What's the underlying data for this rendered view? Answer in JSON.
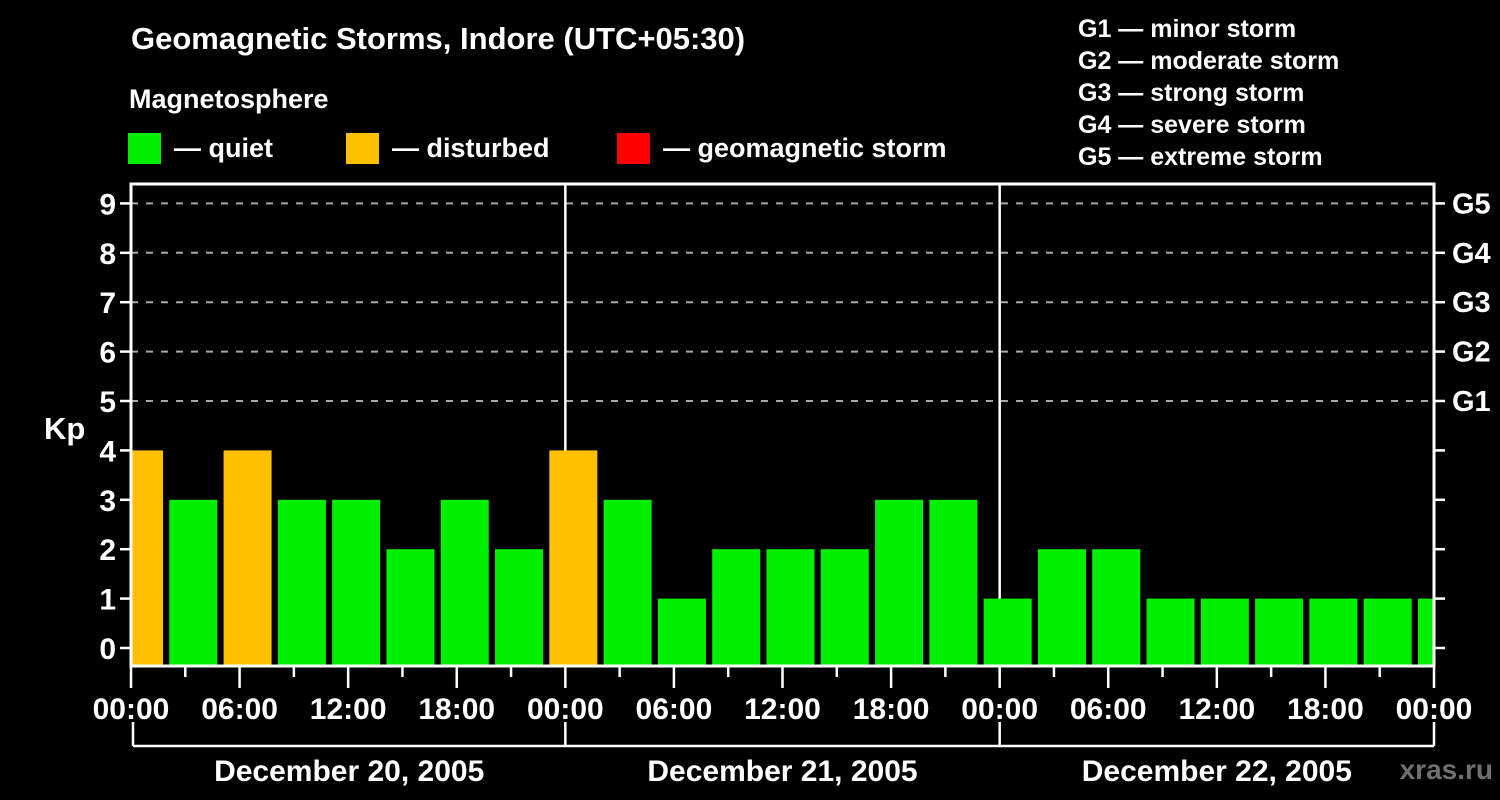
{
  "header": {
    "title": "Geomagnetic Storms, Indore (UTC+05:30)",
    "subtitle": "Magnetosphere"
  },
  "legend": {
    "items": [
      {
        "key": "quiet",
        "label": "— quiet",
        "color": "#00f000"
      },
      {
        "key": "disturbed",
        "label": "— disturbed",
        "color": "#ffc000"
      },
      {
        "key": "storm",
        "label": "— geomagnetic storm",
        "color": "#ff0000"
      }
    ]
  },
  "storm_scale": [
    "G1 — minor storm",
    "G2 — moderate storm",
    "G3 — strong storm",
    "G4 — severe storm",
    "G5 — extreme storm"
  ],
  "axes": {
    "y_label": "Kp",
    "y_tick_labels": [
      "0",
      "1",
      "2",
      "3",
      "4",
      "5",
      "6",
      "7",
      "8",
      "9"
    ],
    "g_labels": [
      "G1",
      "G2",
      "G3",
      "G4",
      "G5"
    ],
    "g_kp_levels": [
      5,
      6,
      7,
      8,
      9
    ],
    "x_time_labels": [
      "00:00",
      "06:00",
      "12:00",
      "18:00",
      "00:00",
      "06:00",
      "12:00",
      "18:00",
      "00:00",
      "06:00",
      "12:00",
      "18:00",
      "00:00"
    ],
    "day_labels": [
      "December 20, 2005",
      "December 21, 2005",
      "December 22, 2005"
    ]
  },
  "chart_data": {
    "type": "bar",
    "title": "Geomagnetic Storms, Indore (UTC+05:30)",
    "ylabel": "Kp",
    "ylim": [
      0,
      9.4
    ],
    "y_ticks": [
      0,
      1,
      2,
      3,
      4,
      5,
      6,
      7,
      8,
      9
    ],
    "grid_kp_levels": [
      5,
      6,
      7,
      8,
      9
    ],
    "interval_hours": 3,
    "days": [
      {
        "date": "December 20, 2005",
        "times": [
          "00:00",
          "03:00",
          "06:00",
          "09:00",
          "12:00",
          "15:00",
          "18:00",
          "21:00"
        ],
        "values": [
          4,
          3,
          4,
          3,
          3,
          2,
          3,
          2
        ]
      },
      {
        "date": "December 21, 2005",
        "times": [
          "00:00",
          "03:00",
          "06:00",
          "09:00",
          "12:00",
          "15:00",
          "18:00",
          "21:00"
        ],
        "values": [
          4,
          3,
          1,
          2,
          2,
          2,
          3,
          3
        ]
      },
      {
        "date": "December 22, 2005",
        "times": [
          "00:00",
          "03:00",
          "06:00",
          "09:00",
          "12:00",
          "15:00",
          "18:00",
          "21:00"
        ],
        "values": [
          1,
          2,
          2,
          1,
          1,
          1,
          1,
          1
        ]
      }
    ],
    "right_edge_bar": {
      "time": "00:00",
      "value": 1
    },
    "color_rules": [
      {
        "condition": "kp <= 3",
        "status": "quiet",
        "color": "#00f000"
      },
      {
        "condition": "kp == 4",
        "status": "disturbed",
        "color": "#ffc000"
      },
      {
        "condition": "kp >= 5",
        "status": "geomagnetic storm",
        "color": "#ff0000"
      }
    ],
    "g_scale": {
      "G1": 5,
      "G2": 6,
      "G3": 7,
      "G4": 8,
      "G5": 9
    }
  },
  "watermark": "xras.ru"
}
